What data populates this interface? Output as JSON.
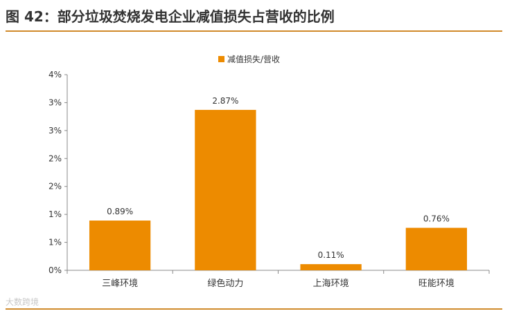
{
  "page": {
    "title": "图 42：部分垃圾焚烧发电企业减值损失占营收的比例",
    "watermark": "大数跨境"
  },
  "colors": {
    "bar": "#ed8b00",
    "accent_rule": "#d08a2a",
    "axis": "#888888",
    "text": "#333333"
  },
  "chart_data": {
    "type": "bar",
    "categories": [
      "三峰环境",
      "绿色动力",
      "上海环境",
      "旺能环境"
    ],
    "series": [
      {
        "name": "减值损失/营收",
        "values": [
          0.89,
          2.87,
          0.11,
          0.76
        ]
      }
    ],
    "data_labels": [
      "0.89%",
      "2.87%",
      "0.11%",
      "0.76%"
    ],
    "y_ticks": [
      0,
      0.5,
      1,
      1.5,
      2,
      2.5,
      3,
      3.5
    ],
    "y_tick_labels": [
      "0%",
      "1%",
      "1%",
      "2%",
      "2%",
      "3%",
      "3%",
      "4%"
    ],
    "ylim": [
      0,
      3.5
    ],
    "title": "",
    "xlabel": "",
    "ylabel": "",
    "grid": false,
    "legend_position": "top-center"
  }
}
